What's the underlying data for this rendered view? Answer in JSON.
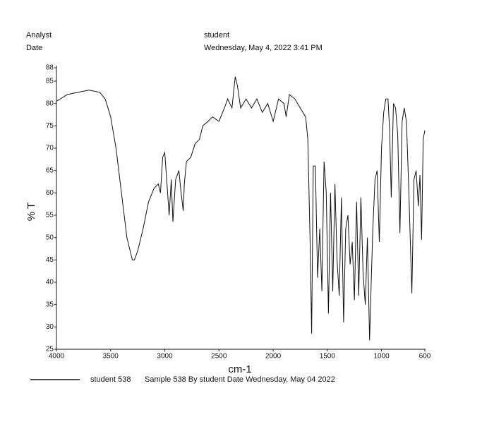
{
  "chart_data": {
    "type": "line",
    "header_labels": [
      "Analyst",
      "Date"
    ],
    "header_values": [
      "student",
      "Wednesday, May 4, 2022 3:41 PM"
    ],
    "ylabel": "% T",
    "xlabel": "cm-1",
    "legend_description": "Sample 538 By student Date Wednesday, May 04 2022",
    "xlim": [
      4000,
      600
    ],
    "xticks": [
      4000,
      3500,
      3000,
      2500,
      2000,
      1500,
      1000,
      600
    ],
    "ylim": [
      25,
      88
    ],
    "yticks": [
      25,
      30,
      35,
      40,
      45,
      50,
      55,
      60,
      65,
      70,
      75,
      80,
      85,
      88
    ],
    "x": [
      4000,
      3900,
      3800,
      3700,
      3600,
      3550,
      3500,
      3450,
      3400,
      3350,
      3300,
      3280,
      3250,
      3200,
      3150,
      3100,
      3060,
      3040,
      3020,
      3000,
      2980,
      2960,
      2940,
      2925,
      2900,
      2870,
      2850,
      2830,
      2820,
      2800,
      2760,
      2720,
      2680,
      2650,
      2600,
      2560,
      2500,
      2450,
      2420,
      2380,
      2350,
      2330,
      2300,
      2250,
      2200,
      2150,
      2100,
      2050,
      2000,
      1950,
      1900,
      1880,
      1850,
      1800,
      1750,
      1700,
      1680,
      1660,
      1645,
      1630,
      1610,
      1590,
      1570,
      1550,
      1530,
      1510,
      1490,
      1470,
      1450,
      1430,
      1410,
      1390,
      1370,
      1350,
      1330,
      1310,
      1290,
      1270,
      1250,
      1230,
      1210,
      1190,
      1170,
      1150,
      1130,
      1110,
      1095,
      1080,
      1060,
      1040,
      1020,
      1000,
      980,
      960,
      940,
      925,
      910,
      890,
      870,
      850,
      830,
      810,
      790,
      770,
      750,
      720,
      700,
      680,
      660,
      645,
      630,
      615,
      600
    ],
    "series": [
      {
        "name": "student 538",
        "color": "#111111",
        "values": [
          80.5,
          82,
          82.5,
          83,
          82.5,
          81,
          77,
          70,
          60,
          50,
          45,
          45,
          47,
          52,
          58,
          61,
          62,
          60,
          68,
          69,
          62,
          55,
          63,
          53.5,
          63,
          65,
          60,
          56,
          62,
          67,
          68,
          71,
          72,
          75,
          76,
          77,
          76,
          79,
          81,
          79,
          86,
          84,
          79,
          81,
          79,
          81,
          78,
          80,
          76,
          81,
          80,
          77,
          82,
          81,
          79,
          77,
          72,
          50,
          28.5,
          66,
          66,
          41,
          52,
          38,
          67,
          60,
          33,
          60,
          38,
          62,
          45,
          37,
          59,
          31,
          52,
          55,
          44,
          49,
          36,
          58,
          37,
          59,
          42,
          35,
          50,
          27,
          40,
          52,
          63,
          65,
          49,
          70,
          78,
          81,
          81,
          74,
          59,
          80,
          79,
          73,
          51,
          76,
          79,
          76,
          62,
          37.5,
          63,
          65,
          57,
          64,
          49.5,
          72,
          74
        ]
      }
    ]
  }
}
